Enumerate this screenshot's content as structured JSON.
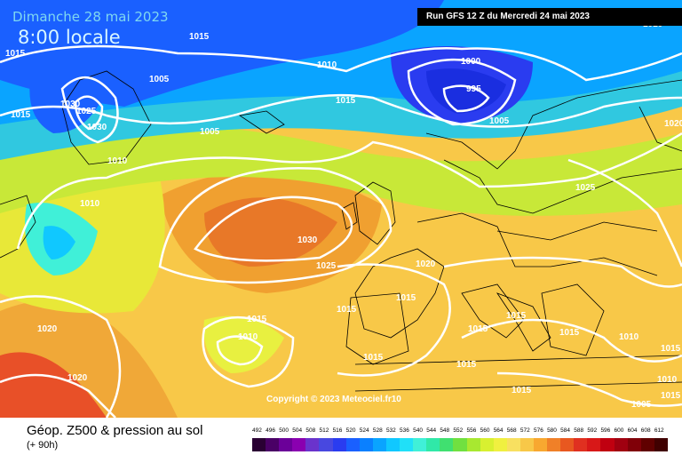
{
  "header": {
    "date": "Dimanche 28 mai 2023",
    "time": "8:00 locale",
    "run": "Run GFS 12 Z du Mercredi 24 mai 2023"
  },
  "copyright": "Copyright © 2023 Meteociel.fr10",
  "footer": {
    "title": "Géop. Z500 & pression au sol",
    "subtitle": "(+ 90h)"
  },
  "isobar_labels": [
    "1015",
    "1015",
    "1015",
    "1005",
    "1010",
    "1025",
    "1030",
    "1030",
    "1010",
    "1000",
    "995",
    "1015",
    "1005",
    "1005",
    "1010",
    "1010",
    "1030",
    "1025",
    "1020",
    "1025",
    "1015",
    "1015",
    "1015",
    "1015",
    "1015",
    "1010",
    "1020",
    "1020",
    "1015",
    "1015",
    "1015",
    "1015",
    "1015",
    "1010",
    "1015",
    "1005",
    "1020",
    "1010"
  ],
  "legend": {
    "values": [
      "492",
      "496",
      "500",
      "504",
      "508",
      "512",
      "516",
      "520",
      "524",
      "528",
      "532",
      "536",
      "540",
      "544",
      "548",
      "552",
      "556",
      "560",
      "564",
      "568",
      "572",
      "576",
      "580",
      "584",
      "588",
      "592",
      "596",
      "600",
      "604",
      "608",
      "612"
    ],
    "colors": [
      "#2a0033",
      "#4a0066",
      "#6b0099",
      "#8a00b0",
      "#6a33cc",
      "#4848e0",
      "#2a3cf0",
      "#1a60ff",
      "#0a80ff",
      "#0aa4ff",
      "#10c8ff",
      "#20e0f8",
      "#40f0d8",
      "#30e8a8",
      "#40e070",
      "#70e040",
      "#a8e830",
      "#d8f030",
      "#f0f040",
      "#f8e060",
      "#f8c848",
      "#f8a830",
      "#f08028",
      "#e85820",
      "#e03020",
      "#d81818",
      "#c00010",
      "#a00010",
      "#800008",
      "#600000",
      "#400000"
    ]
  }
}
